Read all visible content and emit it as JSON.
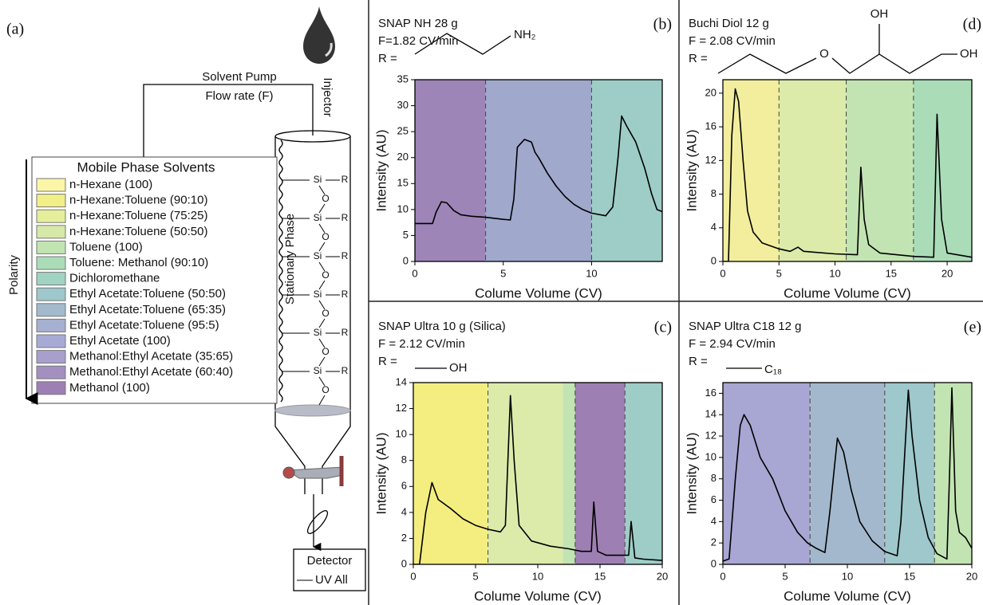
{
  "diagram": {
    "panel": "(a)",
    "pump": [
      "Solvent Pump",
      "Flow rate (F)"
    ],
    "injector": "Injector",
    "stationary_phase": "Stationary Phase",
    "si": "Si",
    "o": "O",
    "r": "R",
    "detector": "Detector",
    "detector_signal": "UV All",
    "polarity": "Polarity",
    "legend_title": "Mobile Phase Solvents",
    "solvents": [
      {
        "name": "n-Hexane (100)",
        "color": "#fbf5a8"
      },
      {
        "name": "n-Hexane:Toluene (90:10)",
        "color": "#f2ee88"
      },
      {
        "name": "n-Hexane:Toluene (75:25)",
        "color": "#e5ee9a"
      },
      {
        "name": "n-Hexane:Toluene (50:50)",
        "color": "#d6e9a8"
      },
      {
        "name": "Toluene (100)",
        "color": "#c2e4b2"
      },
      {
        "name": "Toluene: Methanol (90:10)",
        "color": "#abdcb8"
      },
      {
        "name": "Dichloromethane",
        "color": "#a1d3c2"
      },
      {
        "name": "Ethyl Acetate:Toluene (50:50)",
        "color": "#9ec8cb"
      },
      {
        "name": "Ethyl Acetate:Toluene (65:35)",
        "color": "#a3bacd"
      },
      {
        "name": "Ethyl Acetate:Toluene (95:5)",
        "color": "#a6b0d0"
      },
      {
        "name": "Ethyl Acetate (100)",
        "color": "#a8aad6"
      },
      {
        "name": "Methanol:Ethyl Acetate (35:65)",
        "color": "#a99fcc"
      },
      {
        "name": "Methanol:Ethyl Acetate (60:40)",
        "color": "#a390c0"
      },
      {
        "name": "Methanol (100)",
        "color": "#9e7fb3"
      }
    ]
  },
  "chart_data": [
    {
      "type": "line",
      "panel": "(b)",
      "title": "SNAP NH 28 g",
      "subtitle": "F=1.82 CV/min",
      "r_label": "R =",
      "structure_labels": [
        "NH₂"
      ],
      "x_label": "Colume Volume (CV)",
      "y_label": "Intensity (AU)",
      "xlim": [
        0,
        14
      ],
      "ylim": [
        0,
        35
      ],
      "xticks": [
        0,
        5,
        10
      ],
      "yticks": [
        0,
        5,
        10,
        15,
        20,
        25,
        30,
        35
      ],
      "regions": [
        {
          "x": [
            0,
            4
          ],
          "color": "#9e85b8"
        },
        {
          "x": [
            4,
            10
          ],
          "color": "#a0a8cc"
        },
        {
          "x": [
            10,
            14
          ],
          "color": "#9dcdc6"
        }
      ],
      "dividers": [
        4,
        10
      ],
      "color": "#000000",
      "x": [
        0,
        1.0,
        1.2,
        1.5,
        1.8,
        2.2,
        2.6,
        3.2,
        4,
        5,
        5.4,
        5.6,
        5.8,
        6.2,
        6.6,
        6.8,
        7,
        7.5,
        8,
        8.5,
        9,
        9.5,
        10,
        10.8,
        11.2,
        11.5,
        11.7,
        12,
        12.5,
        13,
        13.4,
        13.7,
        14
      ],
      "values": [
        7.3,
        7.3,
        9.5,
        11.5,
        11.3,
        9.8,
        9.0,
        8.7,
        8.5,
        8.1,
        8.0,
        12,
        22,
        23.5,
        23,
        21,
        20,
        17,
        14.5,
        12.5,
        11,
        10,
        9.3,
        8.8,
        10.5,
        20,
        28,
        26,
        23,
        18,
        13,
        10,
        9.6
      ]
    },
    {
      "type": "line",
      "panel": "(c)",
      "title": "SNAP Ultra 10 g (Silica)",
      "subtitle": "F = 2.12 CV/min",
      "r_label": "R =",
      "structure_labels": [
        "OH"
      ],
      "x_label": "Colume Volume (CV)",
      "y_label": "Intensity (AU)",
      "xlim": [
        0,
        20
      ],
      "ylim": [
        0,
        14
      ],
      "xticks": [
        0,
        5,
        10,
        15,
        20
      ],
      "yticks": [
        0,
        2,
        4,
        6,
        8,
        10,
        12,
        14
      ],
      "regions": [
        {
          "x": [
            0,
            6
          ],
          "color": "#f4ee80"
        },
        {
          "x": [
            6,
            12
          ],
          "color": "#dcebaa"
        },
        {
          "x": [
            12,
            13
          ],
          "color": "#c2e4b2"
        },
        {
          "x": [
            13,
            17
          ],
          "color": "#9e7fb3"
        },
        {
          "x": [
            17,
            20
          ],
          "color": "#9dcdc6"
        }
      ],
      "dividers": [
        6,
        13,
        17
      ],
      "color": "#000000",
      "x": [
        0,
        0.5,
        1,
        1.5,
        2,
        3,
        4,
        5,
        6,
        7,
        7.4,
        7.8,
        8.1,
        8.5,
        9.5,
        11,
        12.5,
        13.5,
        14.3,
        14.5,
        14.8,
        15.5,
        17.3,
        17.5,
        17.8,
        18.5,
        20
      ],
      "values": [
        0,
        0,
        4,
        6.3,
        5,
        4.3,
        3.5,
        3,
        2.7,
        2.5,
        3,
        13,
        8,
        3,
        1.8,
        1.4,
        1.2,
        1.0,
        1.0,
        4.8,
        1.0,
        0.7,
        0.7,
        3.3,
        0.5,
        0.4,
        0.3
      ]
    },
    {
      "type": "line",
      "panel": "(d)",
      "title": "Buchi Diol 12 g",
      "subtitle": "F = 2.08 CV/min",
      "r_label": "R =",
      "structure_labels": [
        "O",
        "OH",
        "OH"
      ],
      "x_label": "Colume Volume (CV)",
      "y_label": "Intensity (AU)",
      "xlim": [
        0,
        22.2
      ],
      "ylim": [
        0,
        21.6
      ],
      "xticks": [
        0,
        5,
        10,
        15,
        20
      ],
      "yticks": [
        0,
        4,
        8,
        12,
        16,
        20
      ],
      "regions": [
        {
          "x": [
            0,
            5
          ],
          "color": "#f2ee9e"
        },
        {
          "x": [
            5,
            11
          ],
          "color": "#dcebaa"
        },
        {
          "x": [
            11,
            17
          ],
          "color": "#c2e4b2"
        },
        {
          "x": [
            17,
            22.2
          ],
          "color": "#abdcb8"
        }
      ],
      "dividers": [
        5,
        11,
        17
      ],
      "color": "#000000",
      "x": [
        0,
        0.5,
        0.8,
        1.1,
        1.4,
        1.8,
        2.2,
        2.7,
        3.5,
        5,
        6,
        6.7,
        7.2,
        10,
        12,
        12.3,
        12.6,
        13,
        14,
        17,
        18.8,
        19.1,
        19.5,
        20,
        22.2
      ],
      "values": [
        0,
        0,
        15,
        20.5,
        19,
        12,
        6,
        3.5,
        2.2,
        1.5,
        1.2,
        1.7,
        1.2,
        0.9,
        0.8,
        11.2,
        5,
        2,
        1,
        0.6,
        0.5,
        17.5,
        5,
        1,
        0.5
      ]
    },
    {
      "type": "line",
      "panel": "(e)",
      "title": "SNAP Ultra C18 12 g",
      "subtitle": "F = 2.94 CV/min",
      "r_label": "R =",
      "structure_labels": [
        "C₁₈"
      ],
      "x_label": "Colume Volume (CV)",
      "y_label": "Intensity (AU)",
      "xlim": [
        0,
        20
      ],
      "ylim": [
        0,
        17
      ],
      "xticks": [
        0,
        5,
        10,
        15,
        20
      ],
      "yticks": [
        0,
        2,
        4,
        6,
        8,
        10,
        12,
        14,
        16
      ],
      "regions": [
        {
          "x": [
            0,
            7
          ],
          "color": "#a8a6d2"
        },
        {
          "x": [
            7,
            13
          ],
          "color": "#a3b8cd"
        },
        {
          "x": [
            13,
            17
          ],
          "color": "#9ec8cb"
        },
        {
          "x": [
            17,
            20
          ],
          "color": "#c2e4b2"
        }
      ],
      "dividers": [
        7,
        13,
        17
      ],
      "color": "#000000",
      "x": [
        0,
        0.5,
        1,
        1.4,
        1.7,
        2.2,
        3,
        4,
        5,
        6,
        6.8,
        7.5,
        8.2,
        8.6,
        9.2,
        9.7,
        10.3,
        11,
        12,
        13,
        14,
        14.3,
        14.9,
        15.2,
        15.8,
        16.5,
        17.2,
        18,
        18.2,
        18.4,
        18.7,
        19,
        19.5,
        20
      ],
      "values": [
        0.3,
        0.5,
        8,
        13,
        14,
        13,
        10,
        8,
        5,
        3,
        2,
        1.5,
        1.1,
        5,
        11.8,
        10.5,
        7,
        4,
        2.2,
        1.2,
        0.8,
        4,
        16.3,
        12,
        6,
        2.5,
        1,
        0.5,
        8,
        16.5,
        5,
        3,
        2.5,
        1.5
      ]
    }
  ]
}
